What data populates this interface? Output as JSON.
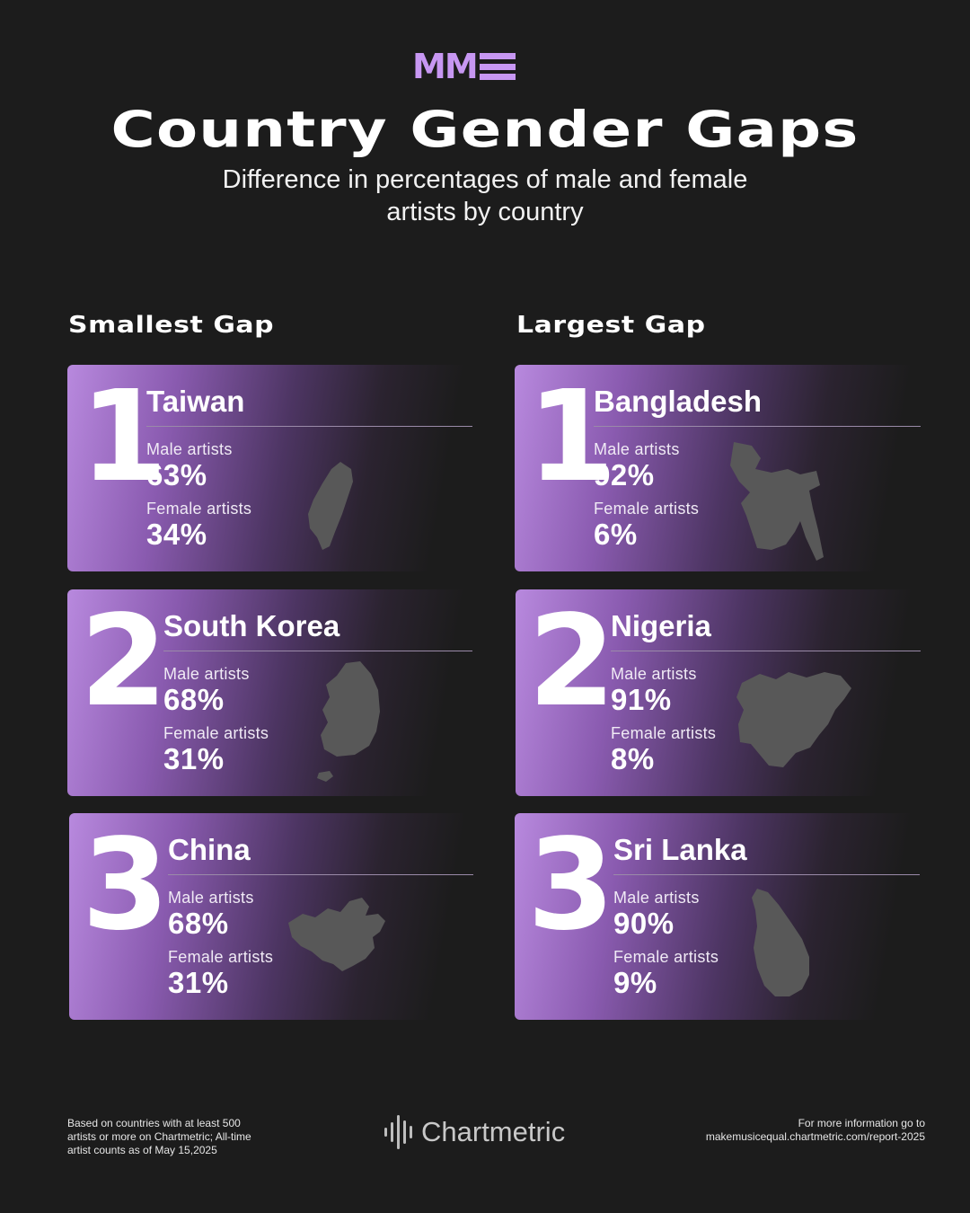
{
  "logo": {
    "text": "MM",
    "color": "#c797f2"
  },
  "title": "Country Gender Gaps",
  "subtitle_line1": "Difference in percentages of male and female",
  "subtitle_line2": "artists by country",
  "columns": {
    "left": "Smallest Gap",
    "right": "Largest Gap"
  },
  "labels": {
    "male": "Male artists",
    "female": "Female artists"
  },
  "smallest": [
    {
      "rank": "1",
      "country": "Taiwan",
      "male": "63%",
      "female": "34%",
      "map_icon": "taiwan-map-icon"
    },
    {
      "rank": "2",
      "country": "South Korea",
      "male": "68%",
      "female": "31%",
      "map_icon": "south-korea-map-icon"
    },
    {
      "rank": "3",
      "country": "China",
      "male": "68%",
      "female": "31%",
      "map_icon": "china-map-icon"
    }
  ],
  "largest": [
    {
      "rank": "1",
      "country": "Bangladesh",
      "male": "92%",
      "female": "6%",
      "map_icon": "bangladesh-map-icon"
    },
    {
      "rank": "2",
      "country": "Nigeria",
      "male": "91%",
      "female": "8%",
      "map_icon": "nigeria-map-icon"
    },
    {
      "rank": "3",
      "country": "Sri Lanka",
      "male": "90%",
      "female": "9%",
      "map_icon": "sri-lanka-map-icon"
    }
  ],
  "footer": {
    "note_line1": "Based on countries with at least 500",
    "note_line2": "artists or more on Chartmetric; All-time",
    "note_line3": "artist counts as of May 15,2025",
    "brand": "Chartmetric",
    "more_line1": "For more information go to",
    "more_line2": "makemusicequal.chartmetric.com/report-2025"
  },
  "colors": {
    "accent": "#c797f2",
    "background": "#1c1c1c",
    "map": "#585858"
  }
}
